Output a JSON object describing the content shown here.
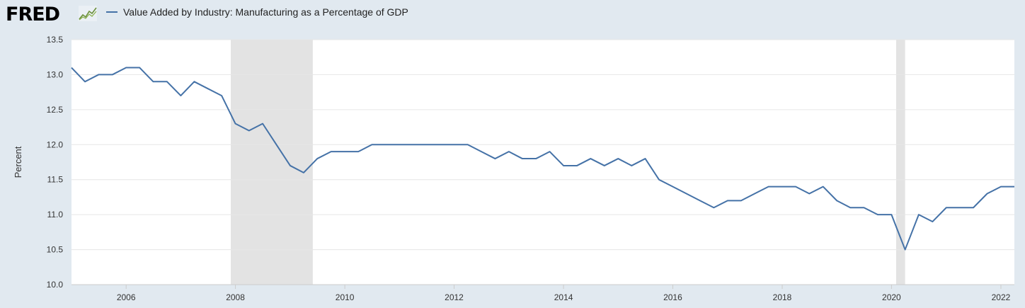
{
  "header": {
    "logo_text": "FRED",
    "legend_label": "Value Added by Industry: Manufacturing as a Percentage of GDP"
  },
  "colors": {
    "series": "#4572a7",
    "recession": "#e3e3e3",
    "plot_bg": "#ffffff",
    "page_bg": "#e1e9f0",
    "grid": "#e6e6e6"
  },
  "chart_data": {
    "type": "line",
    "title": "",
    "xlabel": "",
    "ylabel": "Percent",
    "ylim": [
      10.0,
      13.5
    ],
    "xlim": [
      "2005-01-01",
      "2022-04-01"
    ],
    "y_ticks": [
      "10.0",
      "10.5",
      "11.0",
      "11.5",
      "12.0",
      "12.5",
      "13.0",
      "13.5"
    ],
    "x_ticks": [
      "2006",
      "2008",
      "2010",
      "2012",
      "2014",
      "2016",
      "2018",
      "2020",
      "2022"
    ],
    "grid": true,
    "legend": "top-left",
    "recessions": [
      {
        "start": "2007-12-01",
        "end": "2009-06-01"
      },
      {
        "start": "2020-02-01",
        "end": "2020-04-01"
      }
    ],
    "series": [
      {
        "name": "Value Added by Industry: Manufacturing as a Percentage of GDP",
        "x": [
          "2005-01-01",
          "2005-04-01",
          "2005-07-01",
          "2005-10-01",
          "2006-01-01",
          "2006-04-01",
          "2006-07-01",
          "2006-10-01",
          "2007-01-01",
          "2007-04-01",
          "2007-07-01",
          "2007-10-01",
          "2008-01-01",
          "2008-04-01",
          "2008-07-01",
          "2008-10-01",
          "2009-01-01",
          "2009-04-01",
          "2009-07-01",
          "2009-10-01",
          "2010-01-01",
          "2010-04-01",
          "2010-07-01",
          "2010-10-01",
          "2011-01-01",
          "2011-04-01",
          "2011-07-01",
          "2011-10-01",
          "2012-01-01",
          "2012-04-01",
          "2012-07-01",
          "2012-10-01",
          "2013-01-01",
          "2013-04-01",
          "2013-07-01",
          "2013-10-01",
          "2014-01-01",
          "2014-04-01",
          "2014-07-01",
          "2014-10-01",
          "2015-01-01",
          "2015-04-01",
          "2015-07-01",
          "2015-10-01",
          "2016-01-01",
          "2016-04-01",
          "2016-07-01",
          "2016-10-01",
          "2017-01-01",
          "2017-04-01",
          "2017-07-01",
          "2017-10-01",
          "2018-01-01",
          "2018-04-01",
          "2018-07-01",
          "2018-10-01",
          "2019-01-01",
          "2019-04-01",
          "2019-07-01",
          "2019-10-01",
          "2020-01-01",
          "2020-04-01",
          "2020-07-01",
          "2020-10-01",
          "2021-01-01",
          "2021-04-01",
          "2021-07-01",
          "2021-10-01",
          "2022-01-01",
          "2022-04-01"
        ],
        "values": [
          13.1,
          12.9,
          13.0,
          13.0,
          13.1,
          13.1,
          12.9,
          12.9,
          12.7,
          12.9,
          12.8,
          12.7,
          12.3,
          12.2,
          12.3,
          12.0,
          11.7,
          11.6,
          11.8,
          11.9,
          11.9,
          11.9,
          12.0,
          12.0,
          12.0,
          12.0,
          12.0,
          12.0,
          12.0,
          12.0,
          11.9,
          11.8,
          11.9,
          11.8,
          11.8,
          11.9,
          11.7,
          11.7,
          11.8,
          11.7,
          11.8,
          11.7,
          11.8,
          11.5,
          11.4,
          11.3,
          11.2,
          11.1,
          11.2,
          11.2,
          11.3,
          11.4,
          11.4,
          11.4,
          11.3,
          11.4,
          11.2,
          11.1,
          11.1,
          11.0,
          11.0,
          10.5,
          11.0,
          10.9,
          11.1,
          11.1,
          11.1,
          11.3,
          11.4,
          11.4
        ]
      }
    ]
  }
}
